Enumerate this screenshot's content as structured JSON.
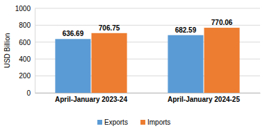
{
  "chart_data": {
    "type": "bar",
    "y_label": "USD Billion",
    "categories": [
      "April-January 2023-24",
      "April-January 2024-25"
    ],
    "series": [
      {
        "name": "Exports",
        "color": "#5b9bd5",
        "values": [
          636.69,
          682.59
        ]
      },
      {
        "name": "Imports",
        "color": "#ed7d31",
        "values": [
          706.75,
          770.06
        ]
      }
    ],
    "ylim": [
      0,
      1000
    ],
    "yticks": [
      0,
      200,
      400,
      600,
      800,
      1000
    ],
    "grid": true,
    "data_labels": true,
    "legend": "bottom"
  }
}
